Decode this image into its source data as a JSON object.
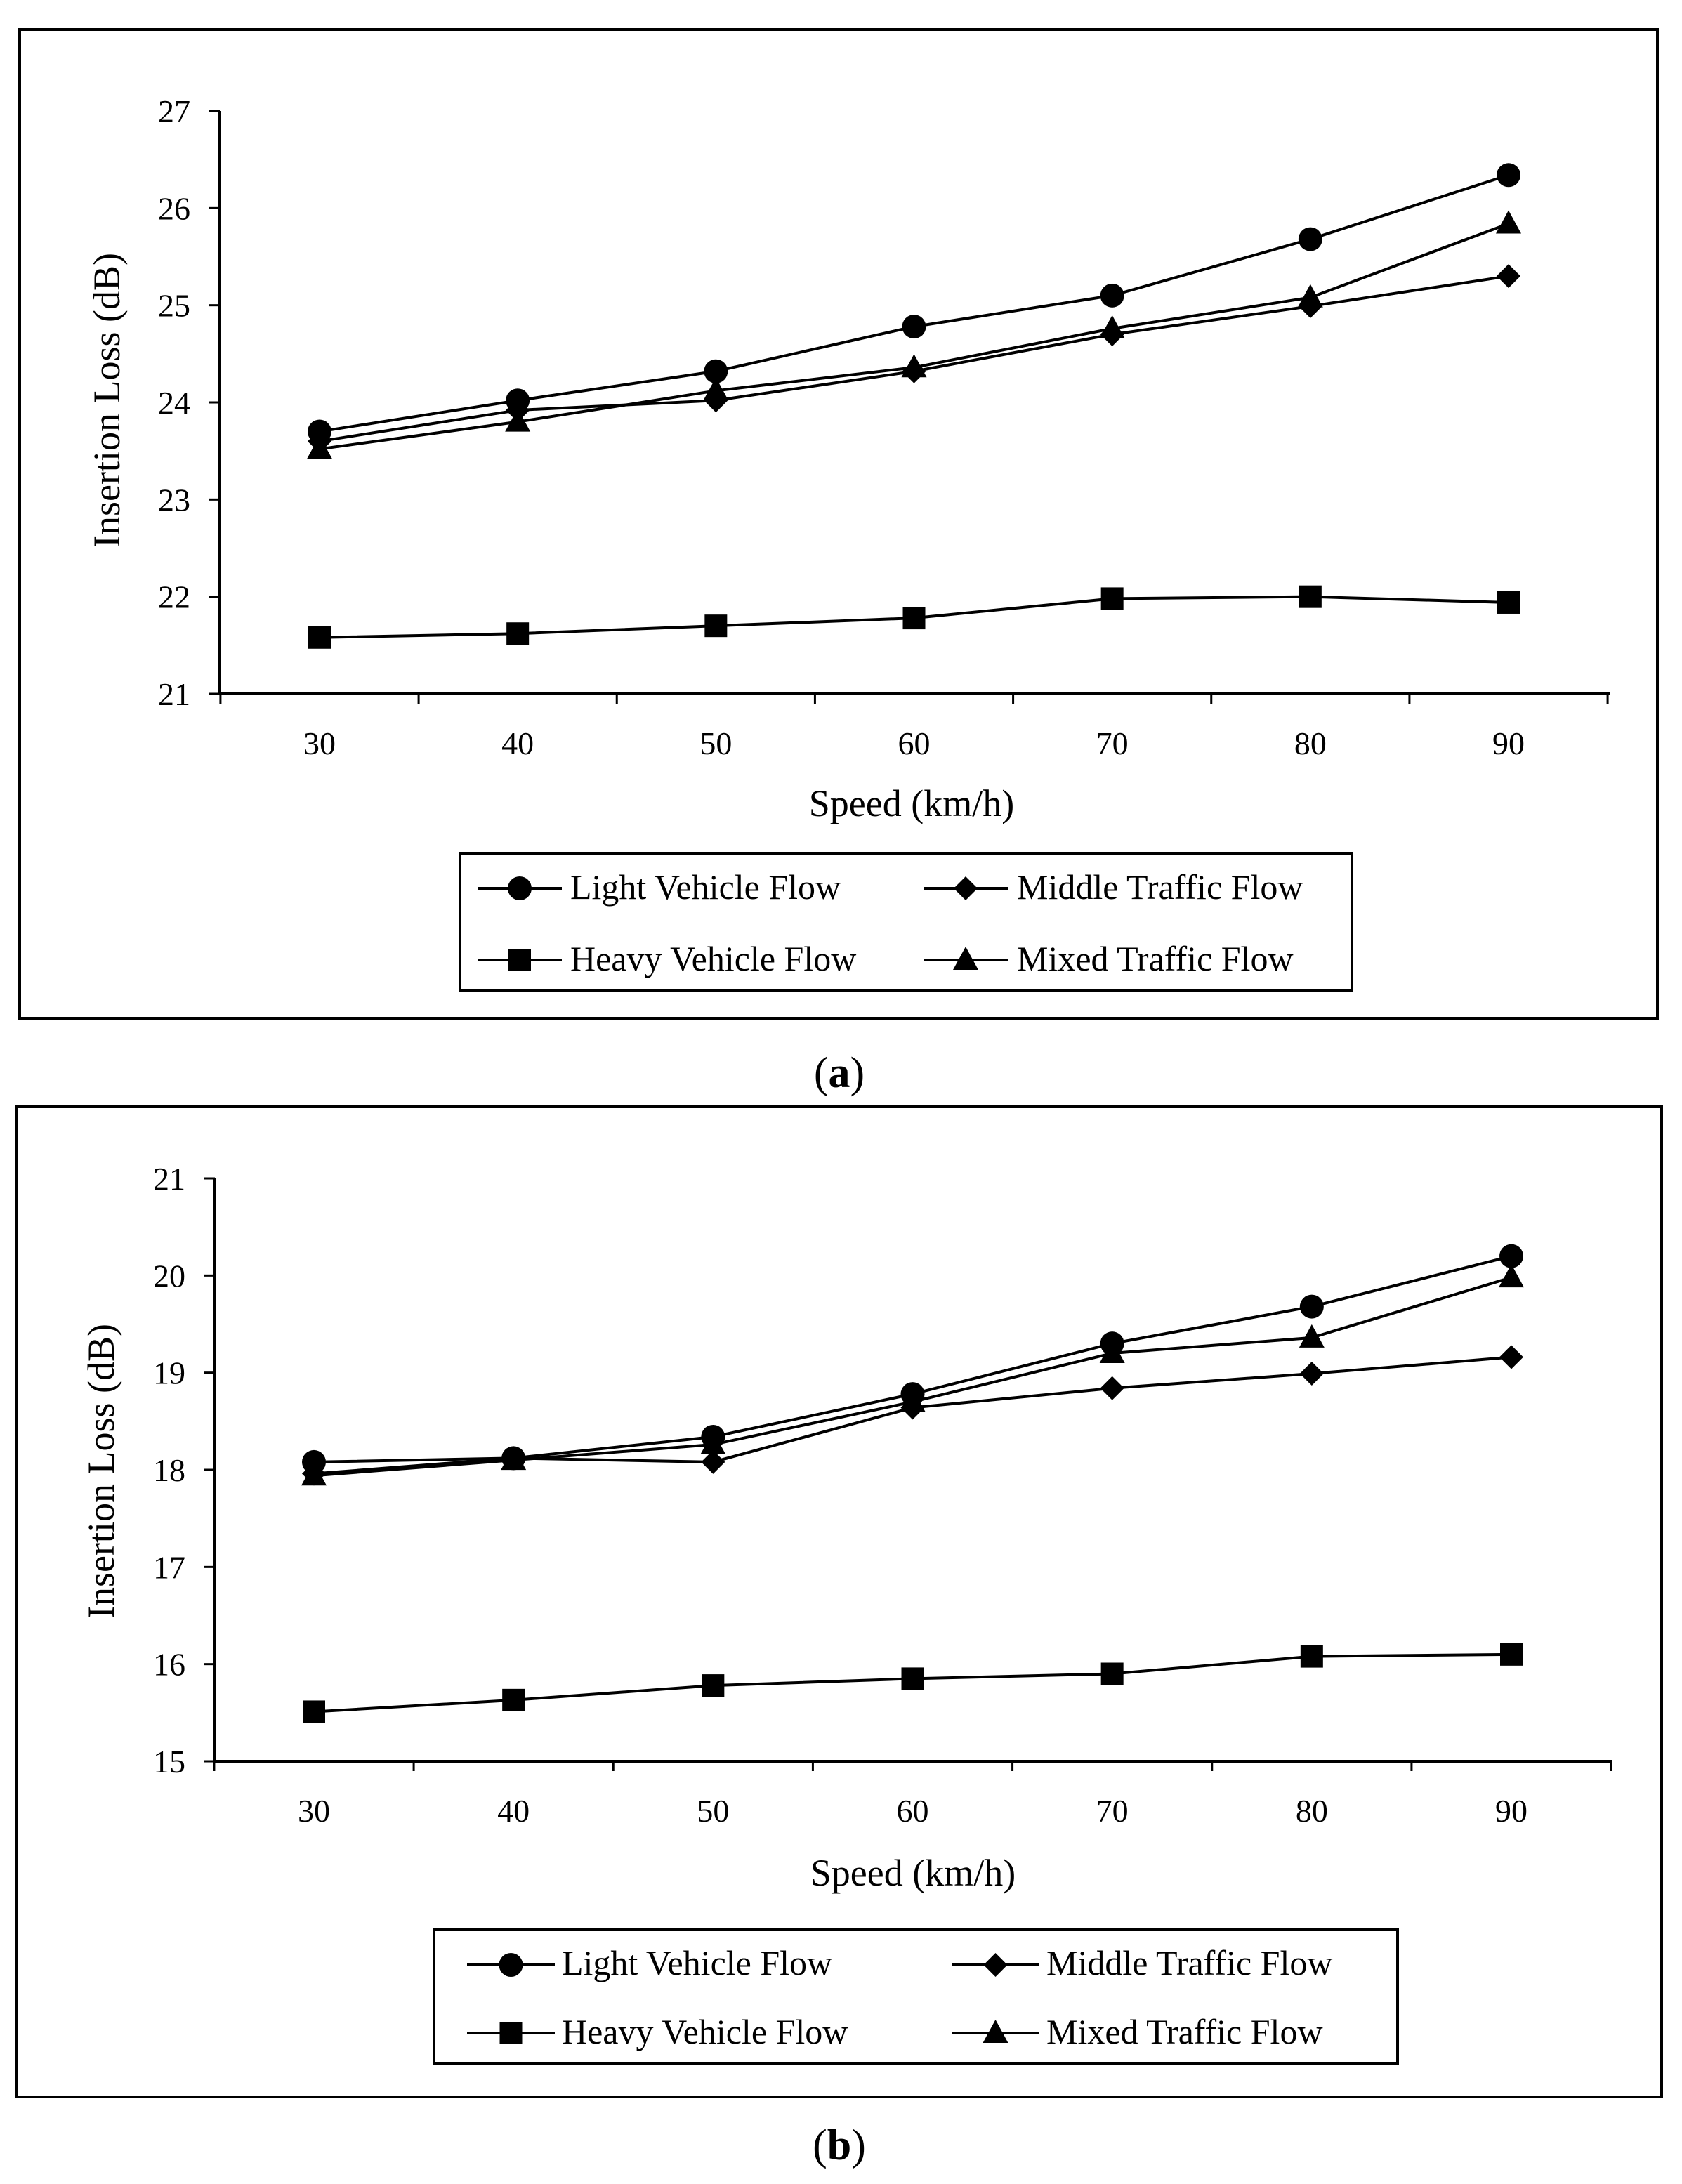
{
  "chart_data": [
    {
      "type": "line",
      "panel": "a",
      "caption_letter": "a",
      "xlabel": "Speed (km/h)",
      "ylabel": "Insertion Loss (dB)",
      "x": [
        30,
        40,
        50,
        60,
        70,
        80,
        90
      ],
      "xlim": [
        25,
        95
      ],
      "ylim": [
        21,
        27
      ],
      "yticks": [
        21,
        22,
        23,
        24,
        25,
        26,
        27
      ],
      "grid": false,
      "legend_position": "bottom",
      "series": [
        {
          "name": "Light Vehicle Flow",
          "marker": "circle",
          "values": [
            23.7,
            24.02,
            24.32,
            24.78,
            25.1,
            25.68,
            26.34
          ]
        },
        {
          "name": "Middle Traffic Flow",
          "marker": "diamond",
          "values": [
            23.6,
            23.92,
            24.02,
            24.32,
            24.7,
            24.99,
            25.3
          ]
        },
        {
          "name": "Heavy Vehicle Flow",
          "marker": "square",
          "values": [
            21.58,
            21.62,
            21.7,
            21.78,
            21.98,
            22.0,
            21.94
          ]
        },
        {
          "name": "Mixed Traffic Flow",
          "marker": "triangle",
          "values": [
            23.52,
            23.8,
            24.12,
            24.36,
            24.76,
            25.08,
            25.84
          ]
        }
      ]
    },
    {
      "type": "line",
      "panel": "b",
      "caption_letter": "b",
      "xlabel": "Speed (km/h)",
      "ylabel": "Insertion Loss (dB)",
      "x": [
        30,
        40,
        50,
        60,
        70,
        80,
        90
      ],
      "xlim": [
        25,
        95
      ],
      "ylim": [
        15,
        21
      ],
      "yticks": [
        15,
        16,
        17,
        18,
        19,
        20,
        21
      ],
      "grid": false,
      "legend_position": "bottom",
      "series": [
        {
          "name": "Light Vehicle Flow",
          "marker": "circle",
          "values": [
            18.08,
            18.12,
            18.34,
            18.78,
            19.3,
            19.68,
            20.2
          ]
        },
        {
          "name": "Middle Traffic Flow",
          "marker": "diamond",
          "values": [
            17.96,
            18.12,
            18.08,
            18.64,
            18.84,
            18.99,
            19.16
          ]
        },
        {
          "name": "Heavy Vehicle Flow",
          "marker": "square",
          "values": [
            15.51,
            15.63,
            15.78,
            15.85,
            15.9,
            16.08,
            16.1
          ]
        },
        {
          "name": "Mixed Traffic Flow",
          "marker": "triangle",
          "values": [
            17.94,
            18.1,
            18.26,
            18.7,
            19.2,
            19.36,
            19.98
          ]
        }
      ]
    }
  ]
}
